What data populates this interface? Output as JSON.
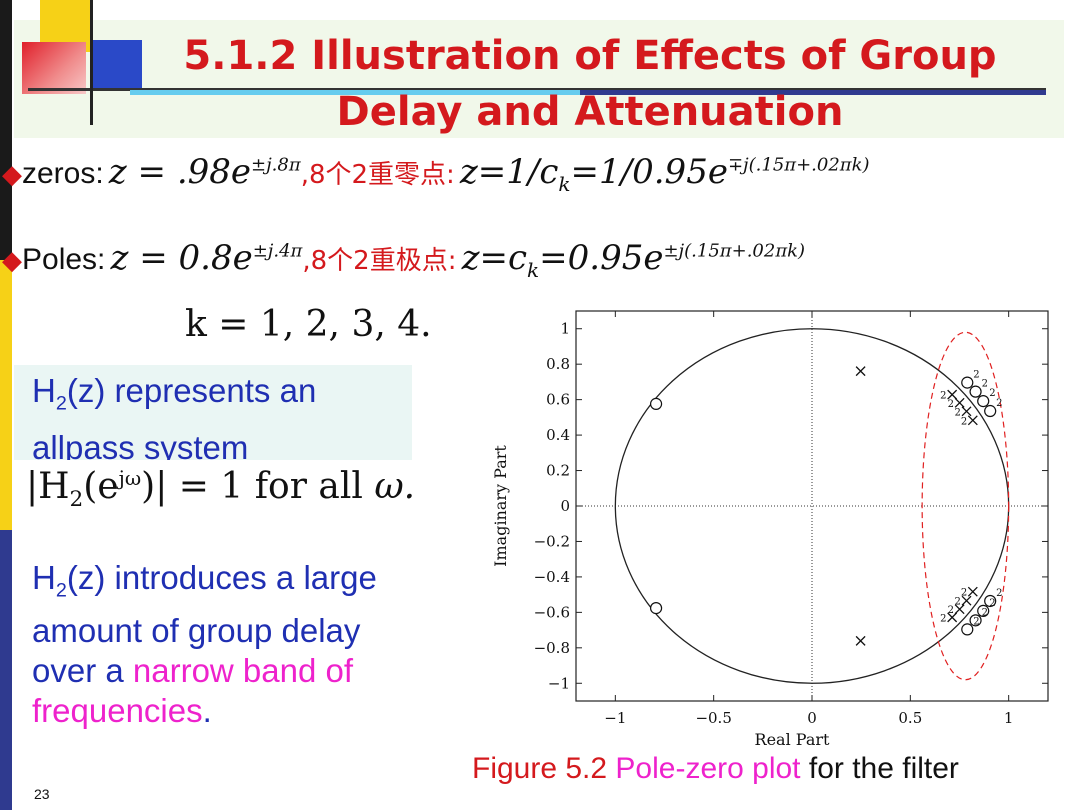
{
  "slide": {
    "title_line1": "5.1.2  Illustration of Effects of Group",
    "title_line2": "Delay and Attenuation",
    "page_number": "23"
  },
  "zeros_row": {
    "label": "zeros:",
    "eq1": "z = .98e",
    "eq1_exp": "±j.8π",
    "cn": ",8个2重零点:",
    "eq2": "z=1/c",
    "eq2_sub": "k",
    "eq2b": "=1/0.95e",
    "eq2_exp": "∓j(.15π+.02πk)"
  },
  "poles_row": {
    "label": "Poles:",
    "eq1": "z = 0.8e",
    "eq1_exp": "±j.4π",
    "cn": ",8个2重极点:",
    "eq2": "z=c",
    "eq2_sub": "k",
    "eq2b": "=0.95e",
    "eq2_exp": "±j(.15π+.02πk)"
  },
  "k_line": "k = 1, 2, 3, 4.",
  "allpass": {
    "line1_pre": "H",
    "line1_sub": "2",
    "line1_post": "(z) represents an",
    "line2": "allpass system"
  },
  "magnitude_eq": "|H₂(e^{jω})| = 1 for all ω.",
  "magnitude": {
    "left": "|H",
    "sub": "2",
    "mid": "(e",
    "sup": "jω",
    "right": ")| = 1 for all ",
    "omega": "ω."
  },
  "delay": {
    "pre": "H",
    "sub": "2",
    "line1_post": "(z) introduces a large",
    "line2": "amount of group delay",
    "line3_blue": "over a ",
    "line3_pink": "narrow band of",
    "line4_pink": "frequencies",
    "line4_blue": "."
  },
  "caption": {
    "figure": "Figure 5.2  ",
    "pink": "Pole-zero plot",
    "black": " for the filter"
  },
  "chart_data": {
    "type": "scatter",
    "xlabel": "Real Part",
    "ylabel": "Imaginary Part",
    "xlim": [
      -1.2,
      1.2
    ],
    "ylim": [
      -1.1,
      1.1
    ],
    "xticks": [
      "−1",
      "−0.5",
      "0",
      "0.5",
      "1"
    ],
    "xtick_values": [
      -1,
      -0.5,
      0,
      0.5,
      1
    ],
    "yticks": [
      "1",
      "0.8",
      "0.6",
      "0.4",
      "0.2",
      "0",
      "−0.2",
      "−0.4",
      "−0.6",
      "−0.8",
      "−1"
    ],
    "ytick_values": [
      1,
      0.8,
      0.6,
      0.4,
      0.2,
      0,
      -0.2,
      -0.4,
      -0.6,
      -0.8,
      -1
    ],
    "unit_circle": true,
    "single_zeros": [
      [
        -0.7928,
        0.576
      ],
      [
        -0.7928,
        -0.576
      ]
    ],
    "single_poles": [
      [
        0.2472,
        0.7608
      ],
      [
        0.2472,
        -0.7608
      ]
    ],
    "cluster_zero_magnitude": 1.0526,
    "cluster_pole_magnitude": 0.95,
    "cluster_angles_pi": [
      0.17,
      0.19,
      0.21,
      0.23
    ],
    "multiplicity_label": "2",
    "highlight_ellipse": {
      "center": [
        0.78,
        0
      ],
      "rx": 0.22,
      "ry": 0.98,
      "color": "#e02020"
    }
  }
}
